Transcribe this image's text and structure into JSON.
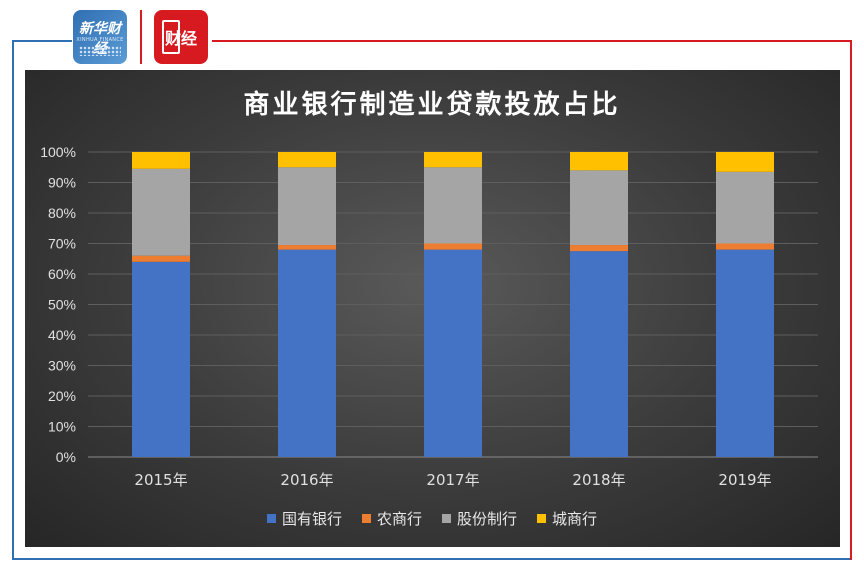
{
  "header": {
    "logo_left": {
      "name": "新华财经",
      "subtitle": "XINHUA FINANCE"
    },
    "logo_right": {
      "name": "财经",
      "subtitle": ""
    }
  },
  "chart_data": {
    "type": "bar",
    "stacked": true,
    "title": "商业银行制造业贷款投放占比",
    "xlabel": "",
    "ylabel": "",
    "ylim": [
      0,
      1
    ],
    "yticks": [
      "0%",
      "10%",
      "20%",
      "30%",
      "40%",
      "50%",
      "60%",
      "70%",
      "80%",
      "90%",
      "100%"
    ],
    "categories": [
      "2015年",
      "2016年",
      "2017年",
      "2018年",
      "2019年"
    ],
    "series": [
      {
        "name": "国有银行",
        "color": "#4472c4",
        "values": [
          0.64,
          0.68,
          0.68,
          0.675,
          0.68
        ]
      },
      {
        "name": "农商行",
        "color": "#ed7d31",
        "values": [
          0.02,
          0.015,
          0.02,
          0.02,
          0.02
        ]
      },
      {
        "name": "股份制行",
        "color": "#a5a5a5",
        "values": [
          0.285,
          0.255,
          0.25,
          0.245,
          0.235
        ]
      },
      {
        "name": "城商行",
        "color": "#ffc000",
        "values": [
          0.055,
          0.05,
          0.05,
          0.06,
          0.065
        ]
      }
    ],
    "grid": true,
    "legend_position": "bottom"
  }
}
